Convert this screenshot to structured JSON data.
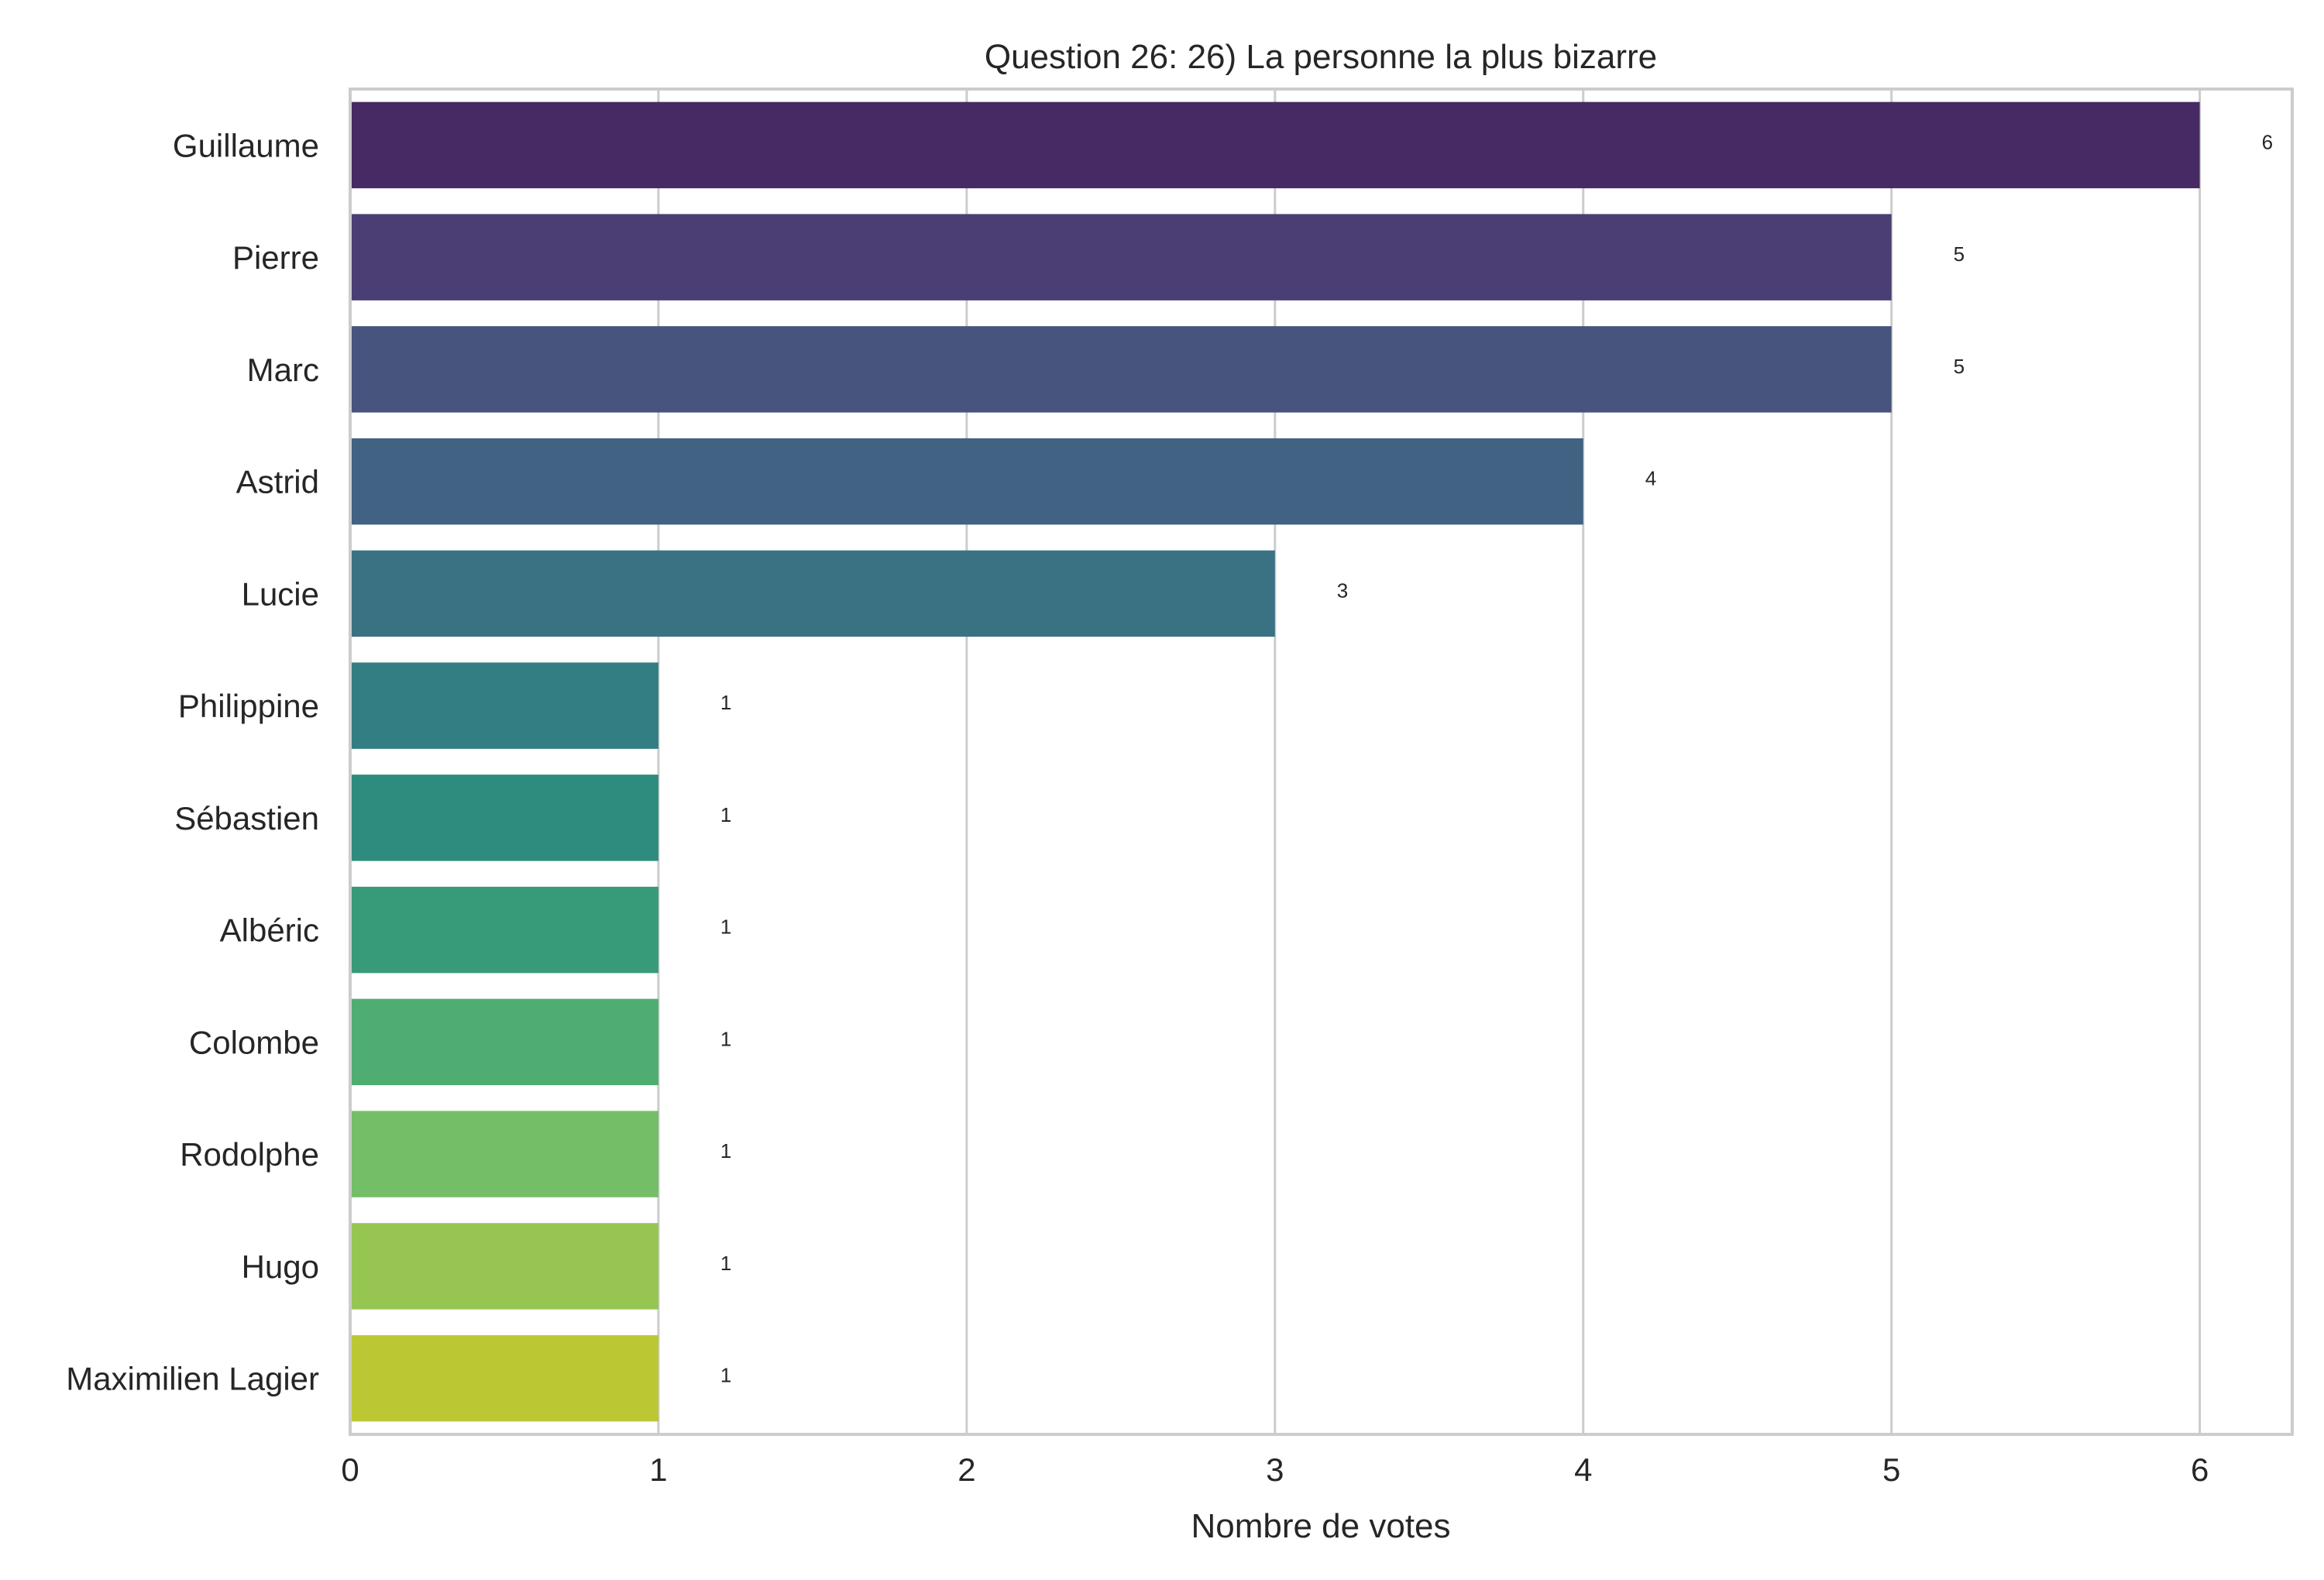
{
  "chart_data": {
    "type": "bar",
    "orientation": "horizontal",
    "title": "Question 26: 26) La personne la plus bizarre",
    "xlabel": "Nombre de votes",
    "ylabel": "",
    "categories": [
      "Guillaume",
      "Pierre",
      "Marc",
      "Astrid",
      "Lucie",
      "Philippine",
      "Sébastien",
      "Albéric",
      "Colombe",
      "Rodolphe",
      "Hugo",
      "Maximilien Lagier"
    ],
    "values": [
      6,
      5,
      5,
      4,
      3,
      1,
      1,
      1,
      1,
      1,
      1,
      1
    ],
    "data_labels": [
      "6",
      "5",
      "5",
      "4",
      "3",
      "1",
      "1",
      "1",
      "1",
      "1",
      "1",
      "1"
    ],
    "colors": [
      "#472a64",
      "#4b3e75",
      "#47547d",
      "#416282",
      "#3a7283",
      "#337e82",
      "#2e8c7e",
      "#379a79",
      "#4fad72",
      "#73be66",
      "#96c551",
      "#bbc833"
    ],
    "xticks": [
      "0",
      "1",
      "2",
      "3",
      "4",
      "5",
      "6"
    ],
    "xlim": [
      0,
      6.3
    ],
    "grid": "vertical",
    "legend": "none"
  }
}
